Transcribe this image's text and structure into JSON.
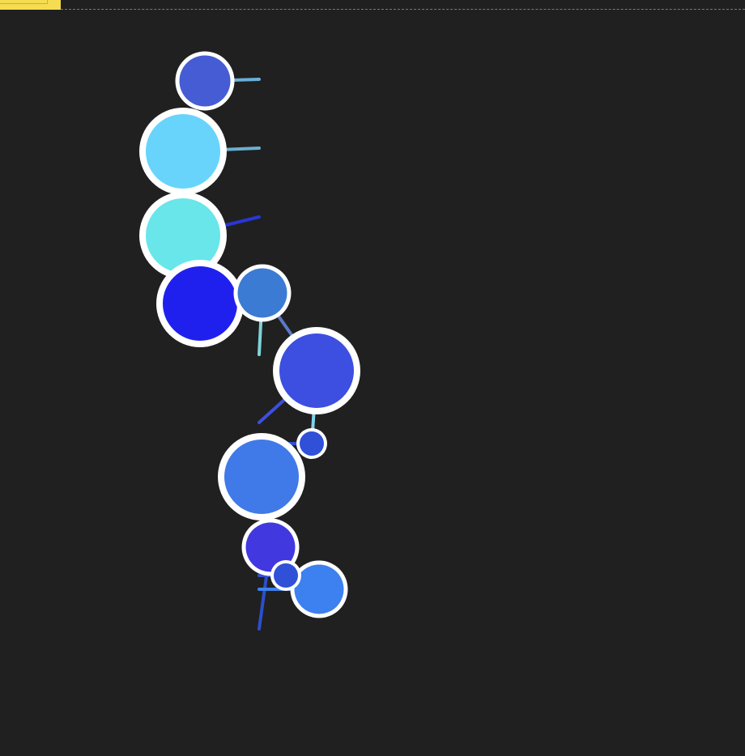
{
  "colors": {
    "background": "#202020",
    "ring": "#ffffff",
    "tab": "#f5dc50",
    "rule": "#7a7a7a"
  },
  "chart_data": {
    "type": "scatter",
    "title": "",
    "xlabel": "",
    "ylabel": "",
    "grid": false,
    "legend": "none",
    "x_anchor": 320,
    "x_scale": {
      "domain": [
        0,
        920
      ],
      "range": [
        0,
        920
      ]
    },
    "y_scale": {
      "domain": [
        0,
        934
      ],
      "range": [
        0,
        934
      ]
    },
    "r_scale": {
      "domain": [
        0,
        58
      ],
      "range": [
        0,
        58
      ]
    },
    "series": [
      {
        "points": [
          {
            "id": "n1",
            "x": 253,
            "y": 100,
            "size": 34,
            "color": "#465cd4",
            "stem_y": 98,
            "stem_color": "#6aafd8"
          },
          {
            "id": "n2",
            "x": 226,
            "y": 187,
            "size": 50,
            "color": "#68d4fb",
            "stem_y": 183,
            "stem_color": "#6aafd0"
          },
          {
            "id": "n3",
            "x": 226,
            "y": 291,
            "size": 50,
            "color": "#68e6ea",
            "stem_y": 268,
            "stem_color": "#2a36d4"
          },
          {
            "id": "n4",
            "x": 247,
            "y": 375,
            "size": 50,
            "color": "#2020ee",
            "stem_y": 375,
            "stem_color": "#2020ee"
          },
          {
            "id": "n5",
            "x": 324,
            "y": 362,
            "size": 33,
            "color": "#3b7bd3",
            "stem_y": 438,
            "stem_color": "#7fd3d8"
          },
          {
            "id": "n6",
            "x": 391,
            "y": 458,
            "size": 50,
            "color": "#3c4fe0",
            "stem_y": 522,
            "stem_color": "#3c4fe0"
          },
          {
            "id": "n7",
            "x": 385,
            "y": 548,
            "size": 17,
            "color": "#3050d8",
            "stem_y": 548,
            "stem_color": "#3050d8"
          },
          {
            "id": "n8",
            "x": 323,
            "y": 589,
            "size": 50,
            "color": "#4079e8",
            "stem_y": 589,
            "stem_color": "#4079e8"
          },
          {
            "id": "n9",
            "x": 334,
            "y": 676,
            "size": 33,
            "color": "#4238e0",
            "stem_y": 777,
            "stem_color": "#2b4fcc"
          },
          {
            "id": "n10",
            "x": 394,
            "y": 728,
            "size": 33,
            "color": "#3d80ef",
            "stem_y": 728,
            "stem_color": "#3d80ef"
          },
          {
            "id": "n11",
            "x": 353,
            "y": 711,
            "size": 17,
            "color": "#3050d8",
            "stem_y": 711,
            "stem_color": "#3050d8"
          }
        ],
        "links": [
          {
            "from": "n5",
            "to": "n6",
            "color": "#5a7ac8"
          },
          {
            "from": "n6",
            "to": "n7",
            "color": "#7fd3e8"
          }
        ]
      }
    ]
  }
}
